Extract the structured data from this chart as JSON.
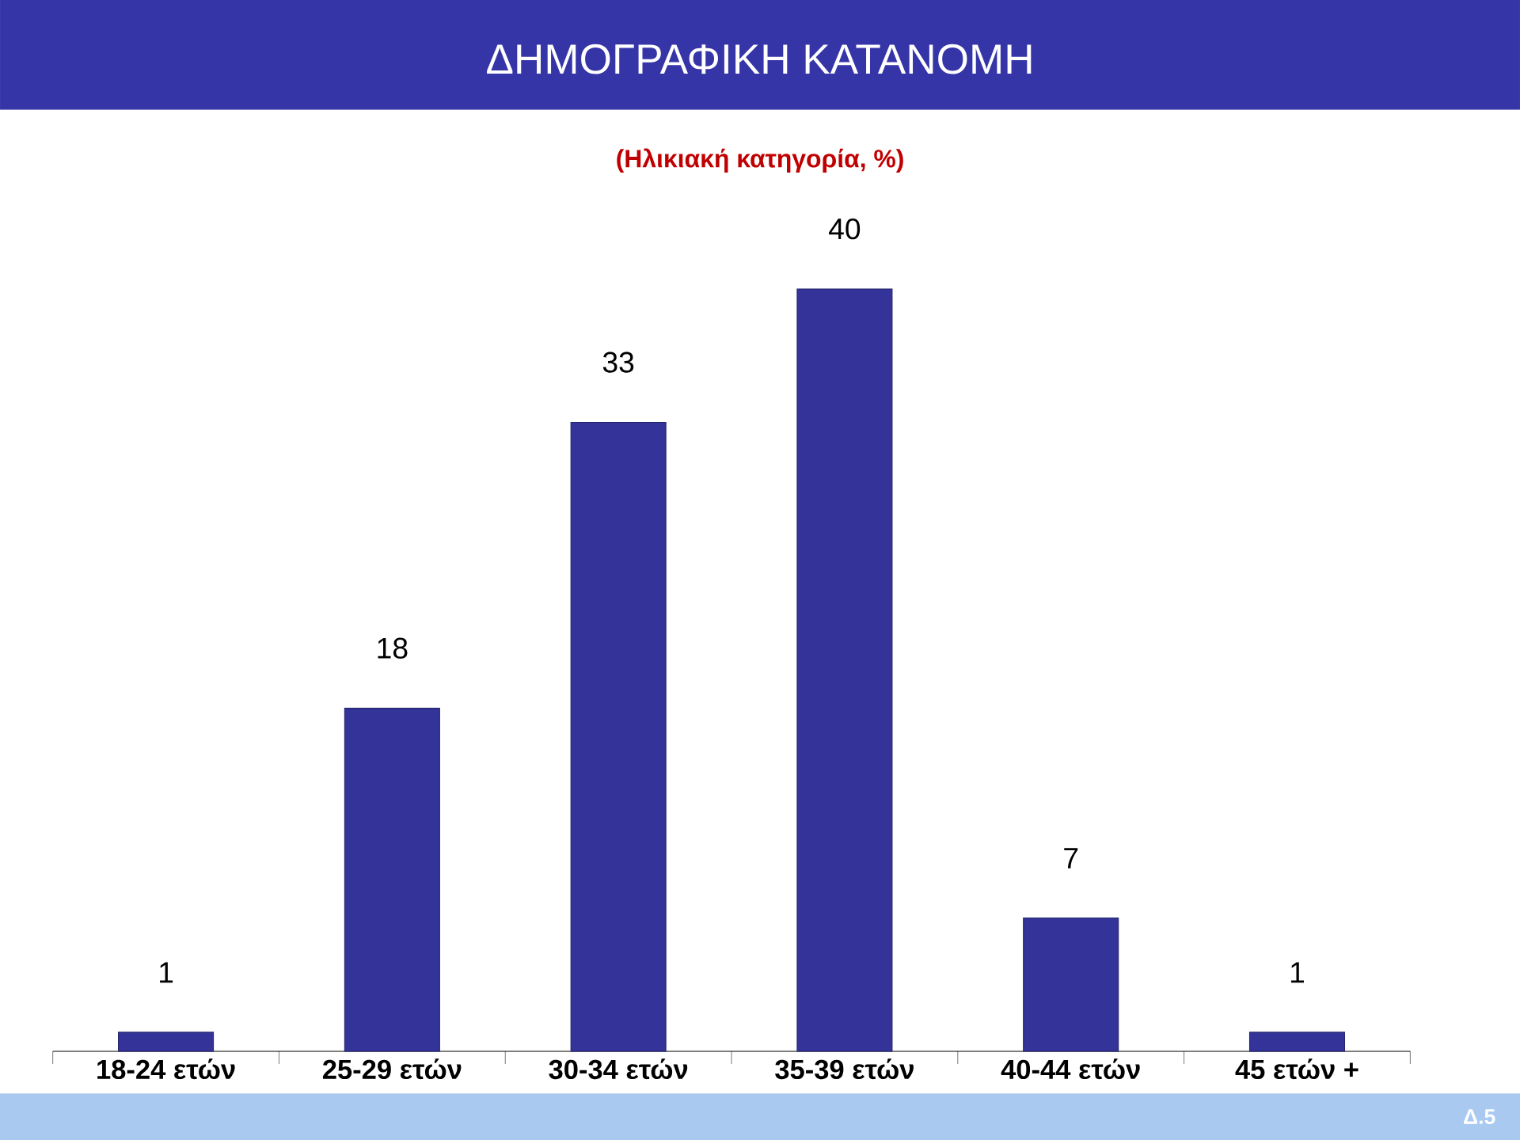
{
  "chart_data": {
    "type": "bar",
    "title": "ΔΗΜΟΓΡΑΦΙΚΗ ΚΑΤΑΝΟΜΗ",
    "subtitle": "(Ηλικιακή κατηγορία, %)",
    "categories": [
      "18-24 ετών",
      "25-29 ετών",
      "30-34 ετών",
      "35-39 ετών",
      "40-44 ετών",
      "45 ετών +"
    ],
    "values": [
      1,
      18,
      33,
      40,
      7,
      1
    ],
    "color": "#333399",
    "data_labels": true,
    "annotations": [
      "Δ.5"
    ]
  }
}
